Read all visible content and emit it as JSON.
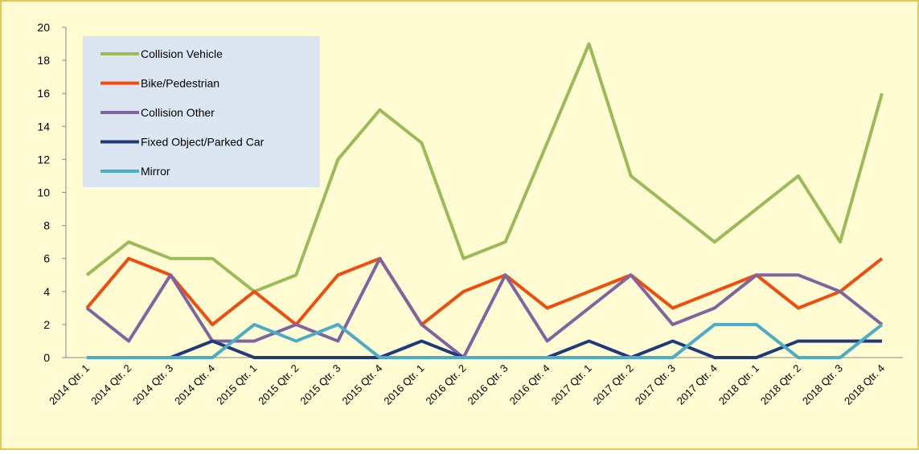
{
  "chart_data": {
    "type": "line",
    "categories": [
      "2014 Qtr. 1",
      "2014 Qtr. 2",
      "2014 Qtr. 3",
      "2014 Qtr. 4",
      "2015 Qtr. 1",
      "2015 Qtr. 2",
      "2015 Qtr. 3",
      "2015 Qtr. 4",
      "2016 Qtr. 1",
      "2016 Qtr. 2",
      "2016 Qtr. 3",
      "2016 Qtr. 4",
      "2017 Qtr. 1",
      "2017 Qtr. 2",
      "2017 Qtr. 3",
      "2017 Qtr. 4",
      "2018 Qtr. 1",
      "2018 Qtr. 2",
      "2018 Qtr. 3",
      "2018 Qtr. 4"
    ],
    "series": [
      {
        "name": "Collision Vehicle",
        "color": "#9bbb59",
        "values": [
          5,
          7,
          6,
          6,
          4,
          5,
          12,
          15,
          13,
          6,
          7,
          13,
          19,
          11,
          9,
          7,
          9,
          11,
          7,
          16
        ]
      },
      {
        "name": "Bike/Pedestrian",
        "color": "#f24c0c",
        "values": [
          3,
          6,
          5,
          2,
          4,
          2,
          5,
          6,
          2,
          4,
          5,
          3,
          4,
          5,
          3,
          4,
          5,
          3,
          4,
          6
        ]
      },
      {
        "name": "Collision Other",
        "color": "#8064a2",
        "values": [
          3,
          1,
          5,
          1,
          1,
          2,
          1,
          6,
          2,
          0,
          5,
          1,
          3,
          5,
          2,
          3,
          5,
          5,
          4,
          2
        ]
      },
      {
        "name": "Fixed Object/Parked Car",
        "color": "#1f3a7a",
        "values": [
          0,
          0,
          0,
          1,
          0,
          0,
          0,
          0,
          1,
          0,
          0,
          0,
          1,
          0,
          1,
          0,
          0,
          1,
          1,
          1
        ]
      },
      {
        "name": "Mirror",
        "color": "#4bacc6",
        "values": [
          0,
          0,
          0,
          0,
          2,
          1,
          2,
          0,
          0,
          0,
          0,
          0,
          0,
          0,
          0,
          2,
          2,
          0,
          0,
          2
        ]
      }
    ],
    "ylim": [
      0,
      20
    ],
    "yticks": [
      0,
      2,
      4,
      6,
      8,
      10,
      12,
      14,
      16,
      18,
      20
    ],
    "legend": "upper left"
  }
}
